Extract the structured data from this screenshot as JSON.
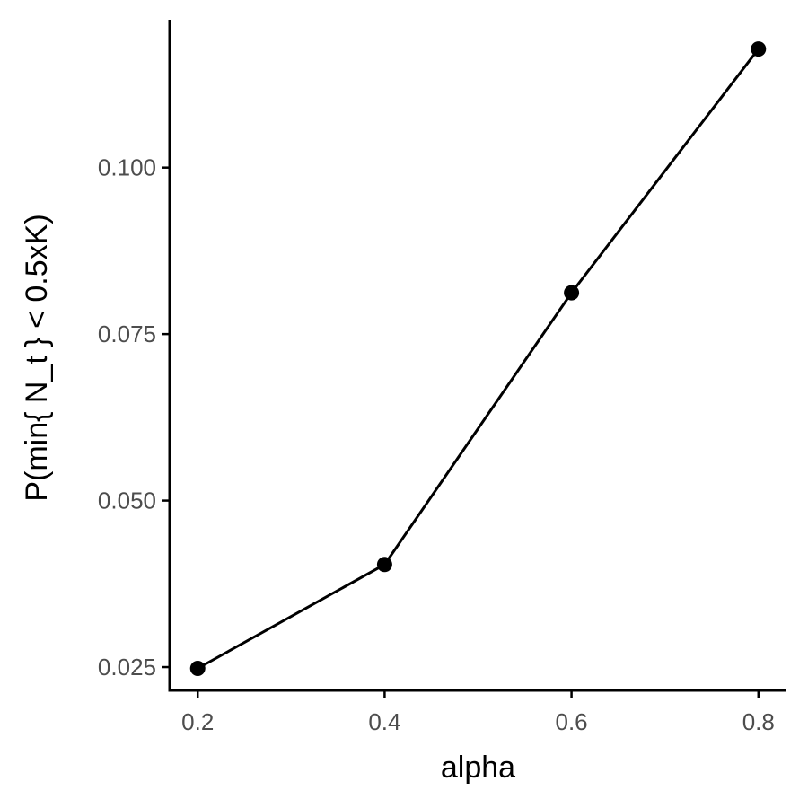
{
  "chart_data": {
    "type": "line",
    "xlabel": "alpha",
    "ylabel": "P(min{ N_t } < 0.5xK)",
    "x": [
      0.2,
      0.4,
      0.6,
      0.8
    ],
    "x_ticks": [
      "0.2",
      "0.4",
      "0.6",
      "0.8"
    ],
    "y_ticks": [
      "0.025",
      "0.050",
      "0.075",
      "0.100"
    ],
    "series": [
      {
        "values": [
          0.0248,
          0.0404,
          0.0812,
          0.1178
        ]
      }
    ],
    "xlim": [
      0.17,
      0.83
    ],
    "ylim": [
      0.0215,
      0.1222
    ],
    "grid": false,
    "legend": "none",
    "colors": {
      "line": "#000000",
      "point": "#000000",
      "tick_label": "#4d4d4d"
    }
  }
}
